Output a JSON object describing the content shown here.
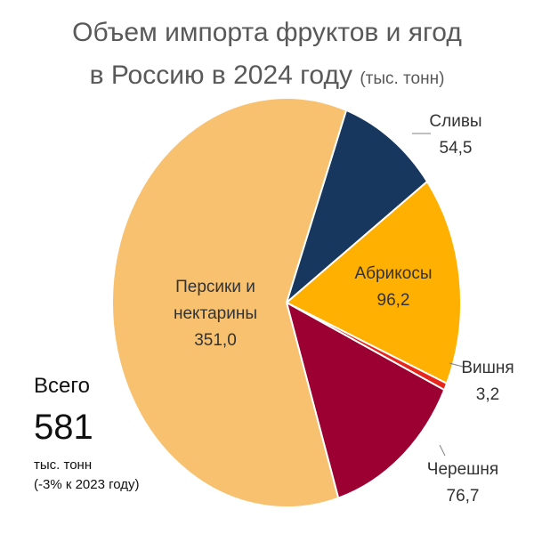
{
  "chart_data": {
    "type": "pie",
    "title_line1": "Объем импорта фруктов и ягод",
    "title_line2": "в Россию в 2024 году",
    "title_unit": "(тыс. тонн)",
    "slices": [
      {
        "key": "plums",
        "name": "Сливы",
        "value": 54.5,
        "label": "54,5",
        "color": "#17375e"
      },
      {
        "key": "apricots",
        "name": "Абрикосы",
        "value": 96.2,
        "label": "96,2",
        "color": "#ffb000"
      },
      {
        "key": "cherry",
        "name": "Вишня",
        "value": 3.2,
        "label": "3,2",
        "color": "#e8261c"
      },
      {
        "key": "sweet-cherry",
        "name": "Черешня",
        "value": 76.7,
        "label": "76,7",
        "color": "#9c0032"
      },
      {
        "key": "peaches",
        "name_lines": [
          "Персики и",
          "нектарины"
        ],
        "value": 351.0,
        "label": "351,0",
        "color": "#f7c170"
      }
    ]
  },
  "total": {
    "heading": "Всего",
    "value": "581",
    "unit": "тыс. тонн",
    "change": "(-3% к 2023 году)"
  }
}
